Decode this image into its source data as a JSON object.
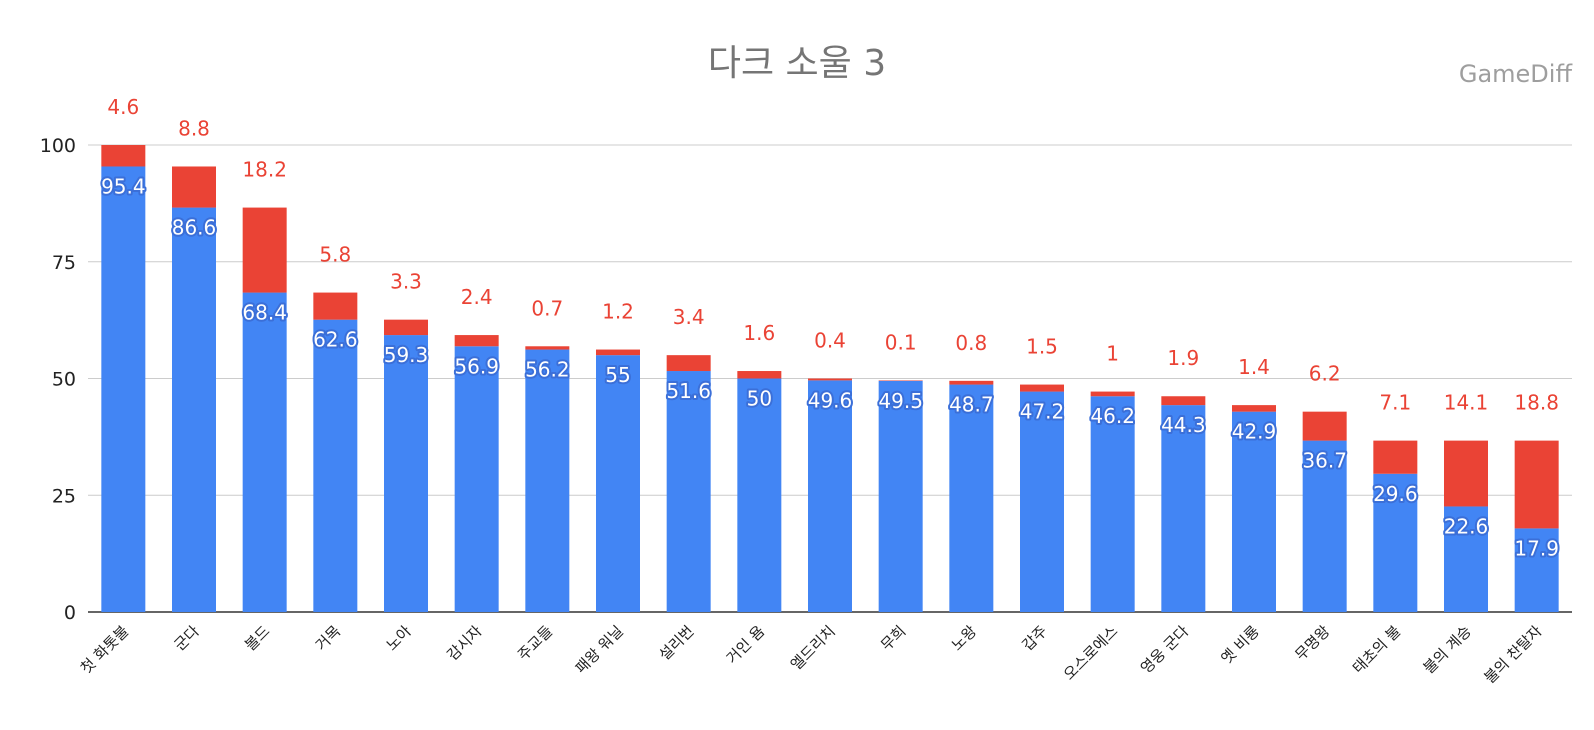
{
  "chart_data": {
    "type": "bar",
    "stacked": true,
    "title": "다크 소울 3",
    "watermark": "GameDiff",
    "categories": [
      "첫 화톳불",
      "군다",
      "볼드",
      "거목",
      "노아",
      "감시자",
      "주교들",
      "패왕 워닐",
      "설리번",
      "거인 욤",
      "엘드리치",
      "무희",
      "노왕",
      "갑주",
      "오스로에스",
      "영웅 군다",
      "옛 비룡",
      "무명왕",
      "태초의 불",
      "불의 계승",
      "불의 찬탈자"
    ],
    "series": [
      {
        "values": [
          95.4,
          86.6,
          68.4,
          62.6,
          59.3,
          56.9,
          56.2,
          55,
          51.6,
          50,
          49.6,
          49.5,
          48.7,
          47.2,
          46.2,
          44.3,
          42.9,
          36.7,
          29.6,
          22.6,
          17.9
        ],
        "color": "#4285f4"
      },
      {
        "values": [
          4.6,
          8.8,
          18.2,
          5.8,
          3.3,
          2.4,
          0.7,
          1.2,
          3.4,
          1.6,
          0.4,
          0.1,
          0.8,
          1.5,
          1,
          1.9,
          1.4,
          6.2,
          7.1,
          14.1,
          18.8
        ],
        "color": "#ea4335"
      }
    ],
    "ylim": [
      0,
      100
    ],
    "yticks": [
      0,
      25,
      50,
      75,
      100
    ],
    "grid": true,
    "legend": "none"
  }
}
